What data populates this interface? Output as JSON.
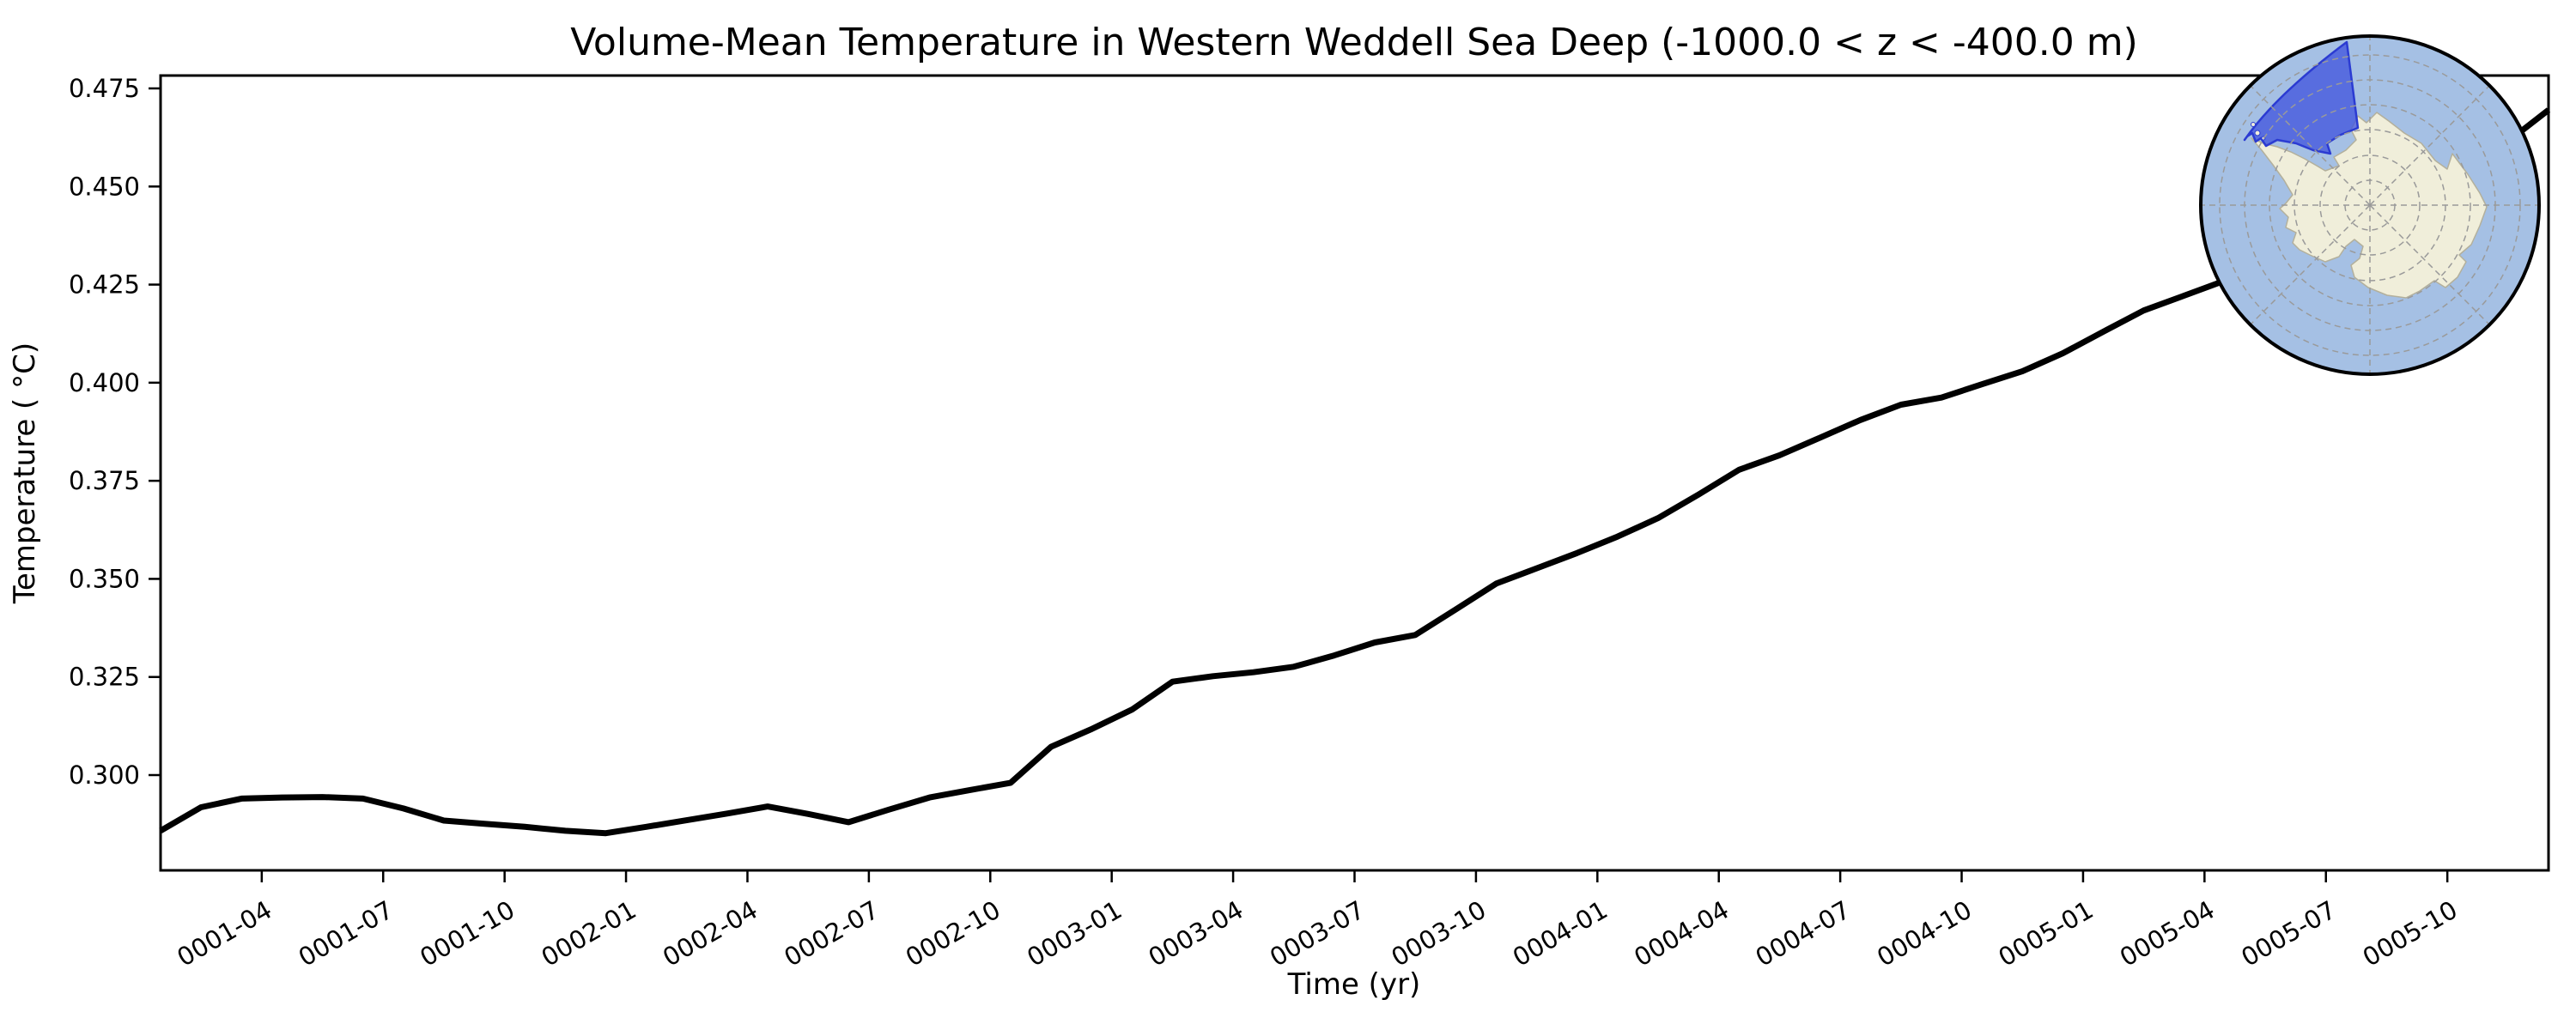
{
  "title": "Volume-Mean Temperature in Western Weddell Sea Deep (-1000.0 < z < -400.0 m)",
  "chart_data": {
    "type": "line",
    "title": "Volume-Mean Temperature in Western Weddell Sea Deep (-1000.0 < z < -400.0 m)",
    "xlabel": "Time (yr)",
    "ylabel": "Temperature ( °C)",
    "series_name": "volume-mean temperature",
    "line_color": "#000000",
    "line_width": 7,
    "grid": false,
    "legend": "none",
    "x": [
      "0001-01",
      "0001-02",
      "0001-03",
      "0001-04",
      "0001-05",
      "0001-06",
      "0001-07",
      "0001-08",
      "0001-09",
      "0001-10",
      "0001-11",
      "0001-12",
      "0002-01",
      "0002-02",
      "0002-03",
      "0002-04",
      "0002-05",
      "0002-06",
      "0002-07",
      "0002-08",
      "0002-09",
      "0002-10",
      "0002-11",
      "0002-12",
      "0003-01",
      "0003-02",
      "0003-03",
      "0003-04",
      "0003-05",
      "0003-06",
      "0003-07",
      "0003-08",
      "0003-09",
      "0003-10",
      "0003-11",
      "0003-12",
      "0004-01",
      "0004-02",
      "0004-03",
      "0004-04",
      "0004-05",
      "0004-06",
      "0004-07",
      "0004-08",
      "0004-09",
      "0004-10",
      "0004-11",
      "0004-12",
      "0005-01",
      "0005-02",
      "0005-03",
      "0005-04",
      "0005-05",
      "0005-06",
      "0005-07",
      "0005-08",
      "0005-09",
      "0005-10",
      "0005-11",
      "0005-12"
    ],
    "values": [
      0.2858,
      0.2918,
      0.294,
      0.2943,
      0.2944,
      0.294,
      0.2915,
      0.2884,
      0.2876,
      0.2868,
      0.2858,
      0.2852,
      0.2868,
      0.2885,
      0.2902,
      0.292,
      0.2901,
      0.288,
      0.2912,
      0.2943,
      0.2962,
      0.298,
      0.3072,
      0.3117,
      0.3167,
      0.3238,
      0.3252,
      0.3262,
      0.3276,
      0.3305,
      0.3338,
      0.3357,
      0.3422,
      0.3488,
      0.3527,
      0.3566,
      0.3608,
      0.3655,
      0.3715,
      0.3778,
      0.3815,
      0.386,
      0.3905,
      0.3944,
      0.3962,
      0.3996,
      0.4029,
      0.4075,
      0.413,
      0.4184,
      0.4222,
      0.426,
      0.4302,
      0.4345,
      0.439,
      0.4437,
      0.4487,
      0.4538,
      0.4615,
      0.4695
    ],
    "x_tick_labels": [
      "0001-04",
      "0001-07",
      "0001-10",
      "0002-01",
      "0002-04",
      "0002-07",
      "0002-10",
      "0003-01",
      "0003-04",
      "0003-07",
      "0003-10",
      "0004-01",
      "0004-04",
      "0004-07",
      "0004-10",
      "0005-01",
      "0005-04",
      "0005-07",
      "0005-10"
    ],
    "y_tick_labels": [
      "0.300",
      "0.325",
      "0.350",
      "0.375",
      "0.400",
      "0.425",
      "0.450",
      "0.475"
    ],
    "x_tick_rotation_deg": 30,
    "xlim": [
      "0001-01",
      "0005-12"
    ],
    "ylim": [
      0.2757,
      0.4783
    ]
  },
  "inset_map": {
    "ocean_color": "#a5c0e4",
    "land_color": "#f0eeda",
    "coast_color": "#b3b09c",
    "graticule_color": "#9a9a9a",
    "outline_color": "#000000",
    "highlight_region_fill": "#4356de",
    "highlight_region_border": "#2b3bd2",
    "highlight_region_opacity": 0.78
  }
}
